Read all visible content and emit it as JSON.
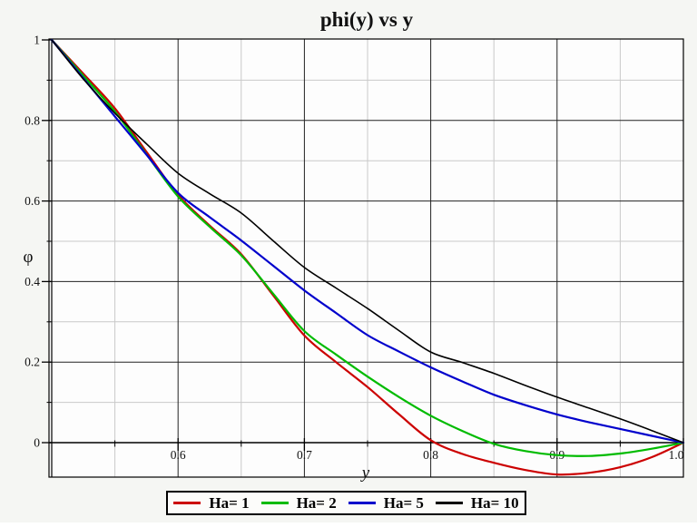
{
  "chart_data": {
    "type": "line",
    "title": "phi(y) vs y",
    "xlabel": "y",
    "ylabel": "φ",
    "xlim": [
      0.5,
      1.0
    ],
    "ylim": [
      -0.085,
      1.0
    ],
    "grid": {
      "major_color": "#222222",
      "minor_color": "#c9c9c9",
      "major_on": true,
      "minor_on": true
    },
    "axis_color": "#000000",
    "plot_bg": "#fdfdfd",
    "figure_bg": "#f5f6f3",
    "x_major_ticks": [
      0.6,
      0.7,
      0.8,
      0.9,
      1.0
    ],
    "x_tick_labels": [
      "0.6",
      "0.7",
      "0.8",
      "0.9",
      "1.0"
    ],
    "x_minor_ticks": [
      0.55,
      0.65,
      0.75,
      0.85,
      0.95
    ],
    "y_major_ticks": [
      0,
      0.2,
      0.4,
      0.6,
      0.8,
      1.0
    ],
    "y_tick_labels": [
      "0",
      "0.2",
      "0.4",
      "0.6",
      "0.8",
      "1"
    ],
    "y_minor_ticks": [
      0.1,
      0.3,
      0.5,
      0.7,
      0.9
    ],
    "legend_position": "bottom",
    "x": [
      0.5,
      0.525,
      0.55,
      0.575,
      0.6,
      0.625,
      0.65,
      0.675,
      0.7,
      0.725,
      0.75,
      0.775,
      0.8,
      0.825,
      0.85,
      0.875,
      0.9,
      0.925,
      0.95,
      0.975,
      1.0
    ],
    "series": [
      {
        "name": "Ha= 1",
        "color": "#cc0000",
        "values": [
          1.0,
          0.916,
          0.83,
          0.722,
          0.615,
          0.539,
          0.468,
          0.367,
          0.266,
          0.2,
          0.138,
          0.07,
          0.006,
          -0.028,
          -0.05,
          -0.068,
          -0.079,
          -0.075,
          -0.061,
          -0.036,
          0.0
        ]
      },
      {
        "name": "Ha= 2",
        "color": "#00bb00",
        "values": [
          1.0,
          0.911,
          0.822,
          0.716,
          0.611,
          0.536,
          0.465,
          0.371,
          0.277,
          0.219,
          0.164,
          0.113,
          0.067,
          0.029,
          -0.003,
          -0.021,
          -0.031,
          -0.033,
          -0.027,
          -0.015,
          0.0
        ]
      },
      {
        "name": "Ha= 5",
        "color": "#0000cc",
        "values": [
          1.0,
          0.905,
          0.81,
          0.715,
          0.62,
          0.56,
          0.502,
          0.44,
          0.378,
          0.322,
          0.267,
          0.226,
          0.187,
          0.152,
          0.119,
          0.093,
          0.07,
          0.051,
          0.034,
          0.017,
          0.0
        ]
      },
      {
        "name": "Ha= 10",
        "color": "#000000",
        "values": [
          1.0,
          0.903,
          0.818,
          0.742,
          0.669,
          0.618,
          0.57,
          0.502,
          0.435,
          0.384,
          0.333,
          0.278,
          0.225,
          0.199,
          0.172,
          0.142,
          0.113,
          0.086,
          0.059,
          0.03,
          0.0
        ]
      }
    ]
  }
}
